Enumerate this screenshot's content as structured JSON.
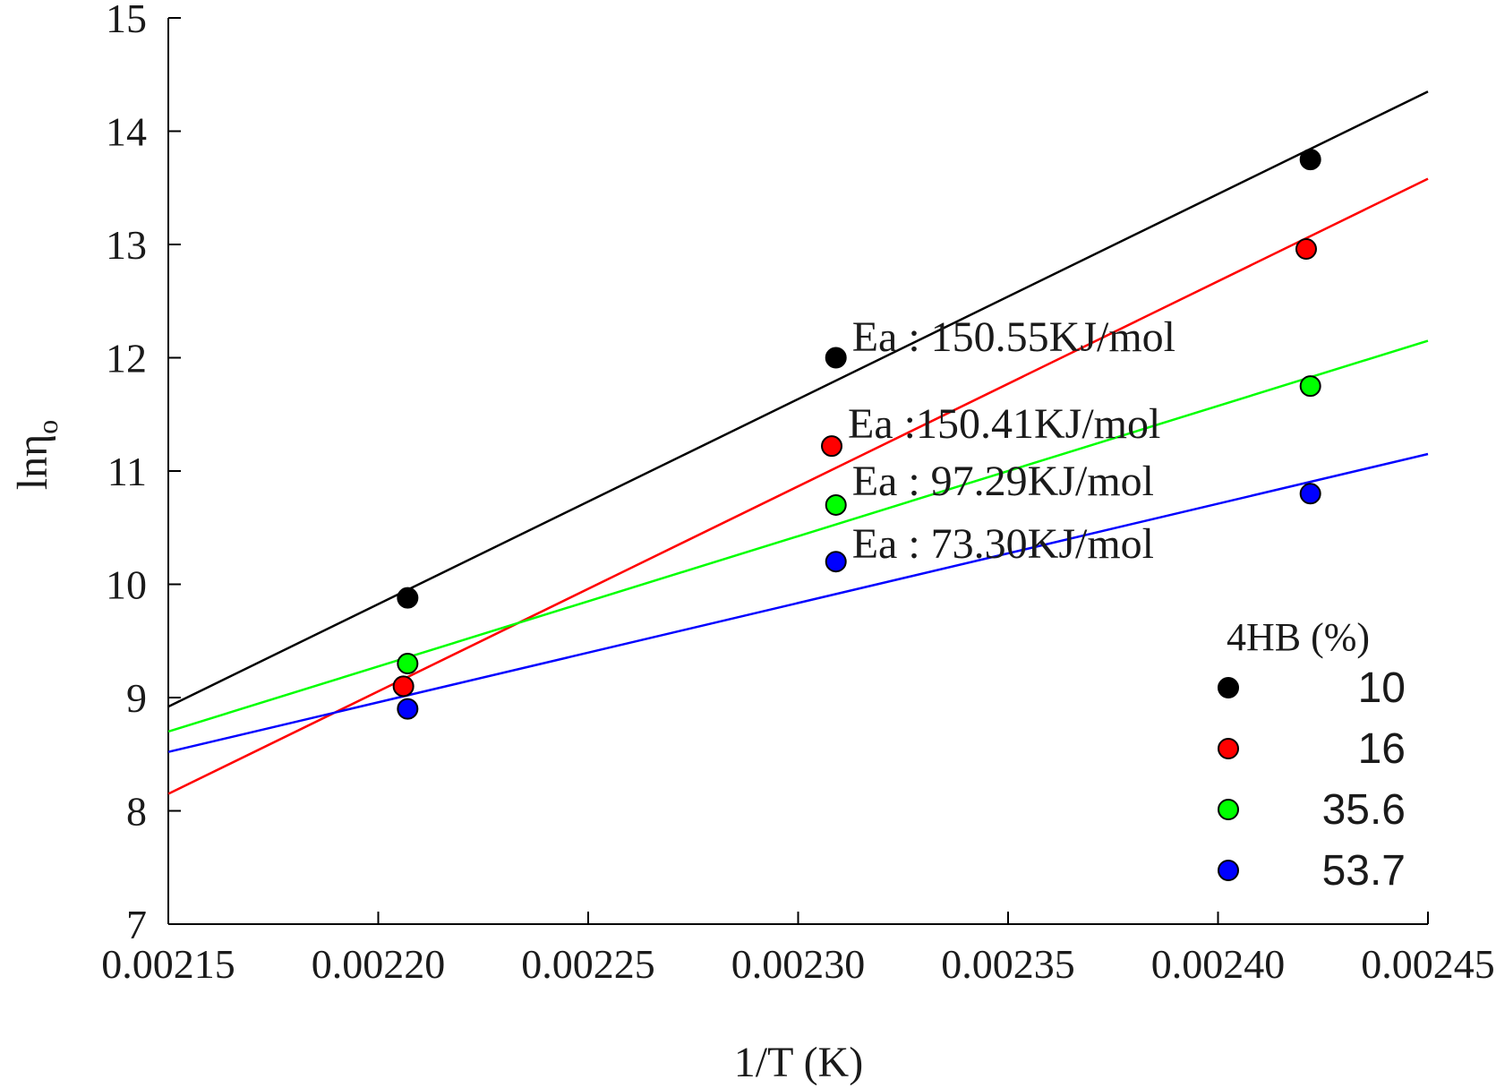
{
  "chart_data": {
    "type": "scatter",
    "xlabel": "1/T (K)",
    "ylabel": "lnη",
    "ylabel_subscript": "o",
    "xlim": [
      0.00215,
      0.00245
    ],
    "ylim": [
      7,
      15
    ],
    "x_ticks": [
      0.00215,
      0.0022,
      0.00225,
      0.0023,
      0.00235,
      0.0024,
      0.00245
    ],
    "x_tick_labels": [
      "0.00215",
      "0.00220",
      "0.00225",
      "0.00230",
      "0.00235",
      "0.00240",
      "0.00245"
    ],
    "y_ticks": [
      7,
      8,
      9,
      10,
      11,
      12,
      13,
      14,
      15
    ],
    "y_tick_labels": [
      "7",
      "8",
      "9",
      "10",
      "11",
      "12",
      "13",
      "14",
      "15"
    ],
    "grid": false,
    "legend": {
      "title": "4HB (%)",
      "position": "bottom-right"
    },
    "series": [
      {
        "name": "10",
        "color": "#000000",
        "x": [
          0.002207,
          0.002309,
          0.002422
        ],
        "y": [
          9.88,
          12.0,
          13.75
        ],
        "fit": [
          [
            0.00215,
            8.92
          ],
          [
            0.00245,
            14.35
          ]
        ],
        "annotation": "Ea : 150.55KJ/mol"
      },
      {
        "name": "16",
        "color": "#ff0000",
        "x": [
          0.002206,
          0.002308,
          0.002421
        ],
        "y": [
          9.1,
          11.22,
          12.96
        ],
        "fit": [
          [
            0.00215,
            8.15
          ],
          [
            0.00245,
            13.58
          ]
        ],
        "annotation": "Ea :150.41KJ/mol"
      },
      {
        "name": "35.6",
        "color": "#00ff00",
        "x": [
          0.002207,
          0.002309,
          0.002422
        ],
        "y": [
          9.3,
          10.7,
          11.75
        ],
        "fit": [
          [
            0.00215,
            8.7
          ],
          [
            0.00245,
            12.15
          ]
        ],
        "annotation": "Ea : 97.29KJ/mol"
      },
      {
        "name": "53.7",
        "color": "#0000ff",
        "x": [
          0.002207,
          0.002309,
          0.002422
        ],
        "y": [
          8.9,
          10.2,
          10.8
        ],
        "fit": [
          [
            0.00215,
            8.52
          ],
          [
            0.00245,
            11.15
          ]
        ],
        "annotation": "Ea : 73.30KJ/mol"
      }
    ]
  }
}
